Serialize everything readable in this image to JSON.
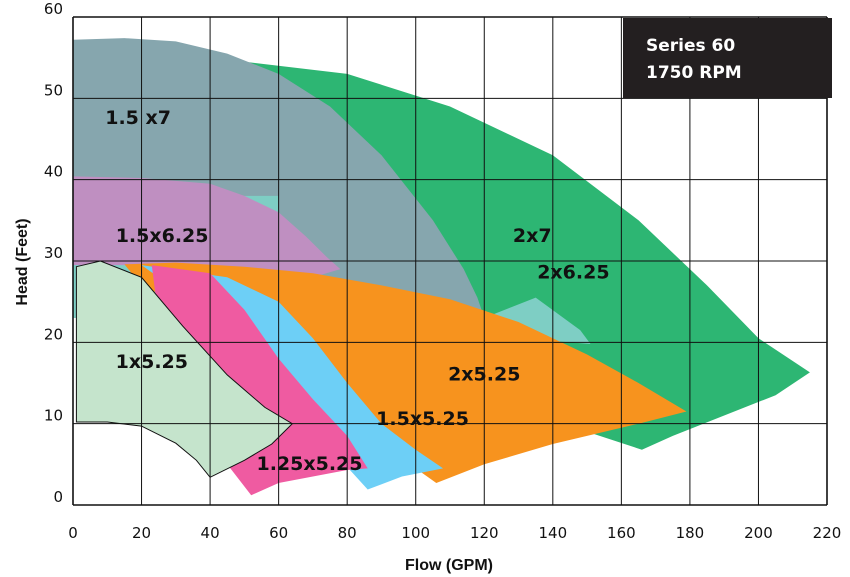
{
  "chart_data": {
    "type": "area",
    "title_box": {
      "line1": "Series 60",
      "line2": "1750 RPM",
      "background": "#231f20"
    },
    "xlabel": "Flow (GPM)",
    "ylabel": "Head (Feet)",
    "xlim": [
      0,
      220
    ],
    "ylim": [
      0,
      60
    ],
    "x_ticks": [
      0,
      20,
      40,
      60,
      80,
      100,
      120,
      140,
      160,
      180,
      200,
      220
    ],
    "y_ticks": [
      0,
      10,
      20,
      30,
      40,
      50,
      60
    ],
    "grid": true,
    "series": [
      {
        "name": "2x7",
        "color": "#2db673",
        "label_at": [
          134,
          33
        ],
        "polygon": [
          [
            50,
            54.5
          ],
          [
            80,
            53
          ],
          [
            110,
            49
          ],
          [
            140,
            43
          ],
          [
            165,
            35
          ],
          [
            185,
            27
          ],
          [
            200,
            20.5
          ],
          [
            215,
            16.3
          ],
          [
            205,
            13.5
          ],
          [
            190,
            11
          ],
          [
            175,
            8.5
          ],
          [
            166,
            6.8
          ],
          [
            150,
            9
          ],
          [
            130,
            13
          ],
          [
            110,
            17.5
          ],
          [
            90,
            24
          ],
          [
            75,
            32
          ],
          [
            65,
            40
          ],
          [
            56,
            48
          ],
          [
            50,
            54.5
          ]
        ]
      },
      {
        "name": "1.5 x7",
        "color": "#86a6ae",
        "label_at": [
          19,
          47.5
        ],
        "polygon": [
          [
            0,
            57.2
          ],
          [
            15,
            57.4
          ],
          [
            30,
            57
          ],
          [
            45,
            55.5
          ],
          [
            60,
            53
          ],
          [
            75,
            49
          ],
          [
            90,
            43
          ],
          [
            105,
            35
          ],
          [
            114,
            29
          ],
          [
            118,
            25.5
          ],
          [
            120,
            23
          ],
          [
            0,
            23
          ]
        ]
      },
      {
        "name": "2x6.25",
        "color": "#7ecec4",
        "label_at": [
          146,
          28.5
        ],
        "polygon": [
          [
            120,
            23
          ],
          [
            135,
            25.5
          ],
          [
            148,
            21.5
          ],
          [
            151,
            19.8
          ],
          [
            130,
            20.5
          ],
          [
            110,
            22
          ],
          [
            80,
            25
          ],
          [
            60,
            29
          ],
          [
            60,
            34
          ],
          [
            60,
            38
          ],
          [
            0,
            38
          ],
          [
            0,
            23
          ]
        ]
      },
      {
        "name": "1.5x6.25",
        "color": "#bf8fc1",
        "label_at": [
          26,
          33
        ],
        "polygon": [
          [
            0,
            40.4
          ],
          [
            20,
            40.2
          ],
          [
            40,
            39.5
          ],
          [
            50,
            38
          ],
          [
            60,
            36
          ],
          [
            68,
            33
          ],
          [
            74,
            30.5
          ],
          [
            78,
            29
          ],
          [
            70,
            28
          ],
          [
            55,
            28
          ],
          [
            40,
            29
          ],
          [
            20,
            29.5
          ],
          [
            0,
            29.5
          ]
        ]
      },
      {
        "name": "2x5.25",
        "color": "#f7931e",
        "label_at": [
          120,
          16
        ],
        "polygon": [
          [
            15,
            29.6
          ],
          [
            30,
            29.8
          ],
          [
            50,
            29.3
          ],
          [
            70,
            28.5
          ],
          [
            90,
            27
          ],
          [
            110,
            25.3
          ],
          [
            130,
            22.5
          ],
          [
            150,
            18.5
          ],
          [
            165,
            15
          ],
          [
            179,
            11.5
          ],
          [
            165,
            10
          ],
          [
            140,
            7.5
          ],
          [
            120,
            5
          ],
          [
            106,
            2.7
          ],
          [
            95,
            6
          ],
          [
            80,
            11
          ],
          [
            60,
            18
          ],
          [
            40,
            23
          ],
          [
            20,
            27
          ]
        ]
      },
      {
        "name": "1.5x5.25",
        "color": "#6dcff6",
        "label_at": [
          102,
          10.5
        ],
        "polygon": [
          [
            20,
            29.5
          ],
          [
            45,
            28
          ],
          [
            60,
            25
          ],
          [
            70,
            20.5
          ],
          [
            80,
            15
          ],
          [
            90,
            10
          ],
          [
            100,
            6.8
          ],
          [
            108,
            4.5
          ],
          [
            96,
            3.5
          ],
          [
            86,
            1.9
          ],
          [
            75,
            7
          ],
          [
            60,
            14
          ],
          [
            45,
            21
          ],
          [
            30,
            26.5
          ]
        ]
      },
      {
        "name": "1.25x5.25",
        "color": "#ef5ba1",
        "label_at": [
          69,
          5
        ],
        "polygon": [
          [
            23,
            29.5
          ],
          [
            40,
            28.5
          ],
          [
            50,
            24
          ],
          [
            60,
            18
          ],
          [
            70,
            13
          ],
          [
            80,
            8.5
          ],
          [
            86,
            4.5
          ],
          [
            80,
            4.3
          ],
          [
            70,
            3.5
          ],
          [
            60,
            2.7
          ],
          [
            52,
            1.2
          ],
          [
            45,
            5
          ],
          [
            35,
            12
          ],
          [
            28,
            20
          ],
          [
            24,
            26
          ]
        ]
      },
      {
        "name": "1x5.25",
        "color": "#c5e4cc",
        "label_at": [
          23,
          17.5
        ],
        "polygon": [
          [
            1,
            29.3
          ],
          [
            8,
            30
          ],
          [
            20,
            28
          ],
          [
            32,
            22
          ],
          [
            45,
            16
          ],
          [
            56,
            12
          ],
          [
            64,
            10
          ],
          [
            58,
            7.5
          ],
          [
            50,
            5.5
          ],
          [
            40,
            3.4
          ],
          [
            36,
            5.5
          ],
          [
            30,
            7.6
          ],
          [
            20,
            9.7
          ],
          [
            10,
            10.2
          ],
          [
            1,
            10.2
          ]
        ]
      }
    ]
  }
}
